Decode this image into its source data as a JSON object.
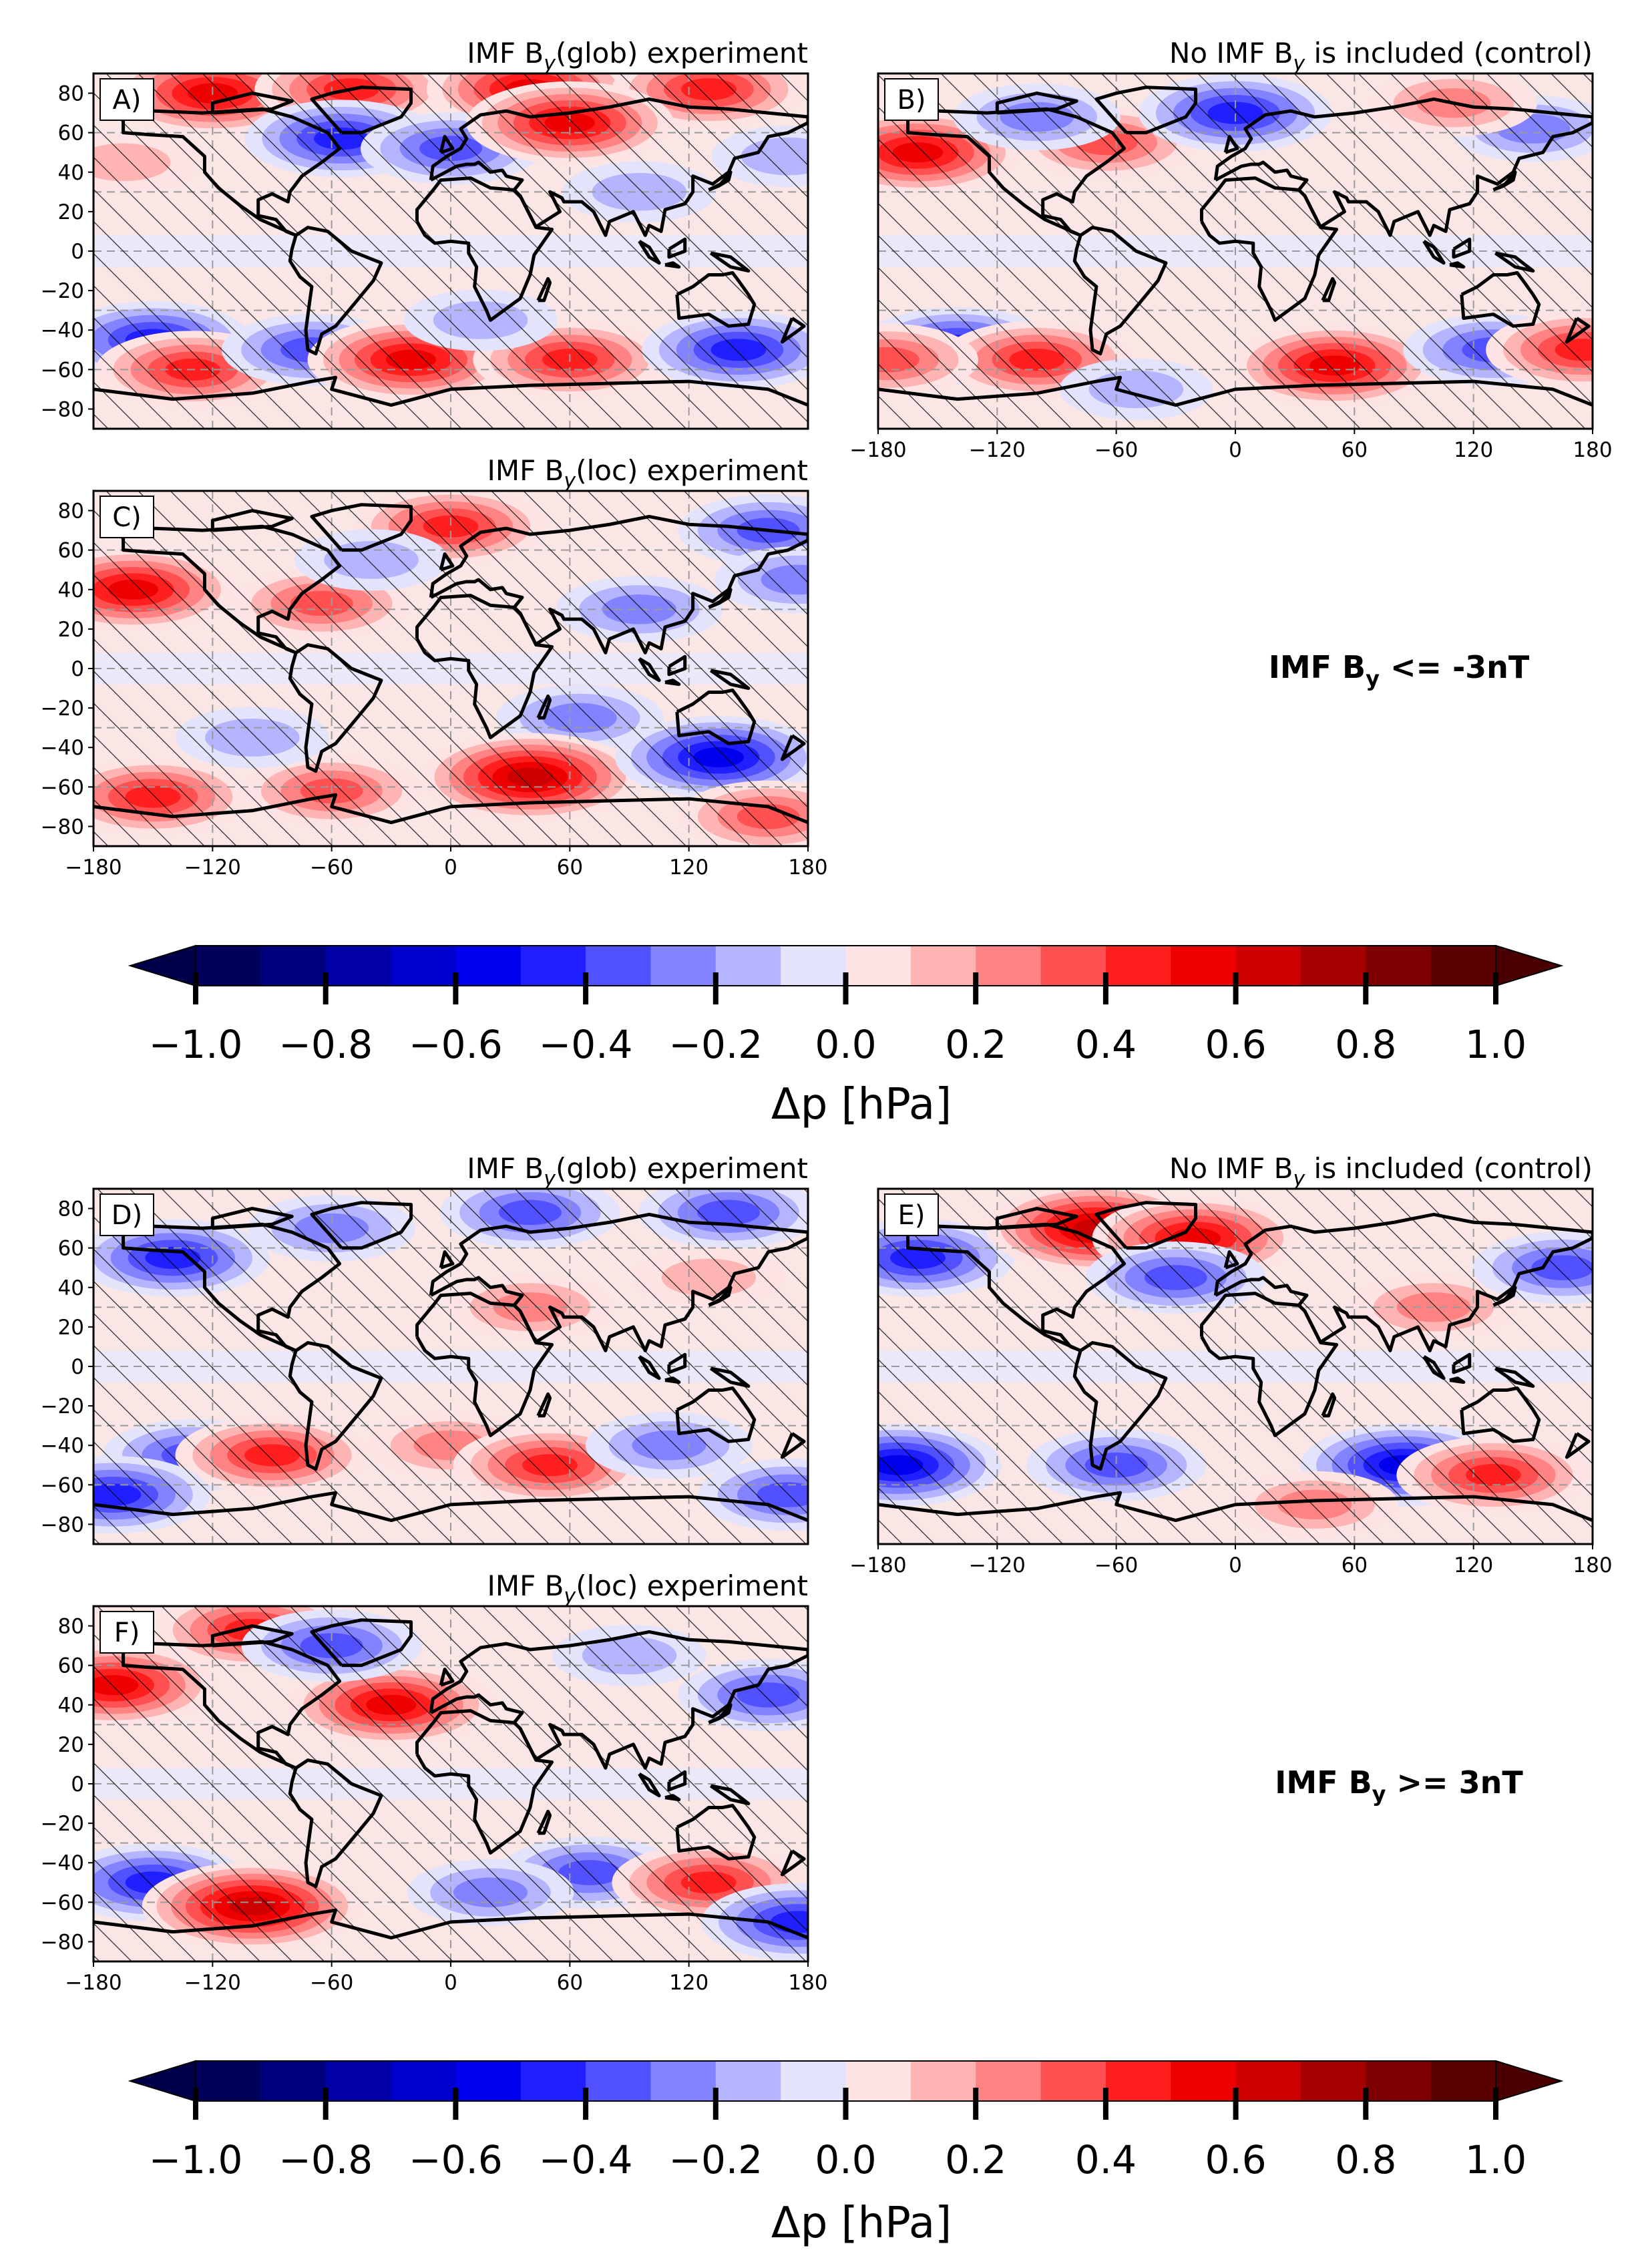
{
  "chart_data": [
    {
      "type": "heatmap",
      "panel_label": "A)",
      "title": "IMF B",
      "title_sub": "y",
      "title_rest": "(glob) experiment",
      "condition": "IMF By <= -3nT",
      "xlim": [
        -180,
        180
      ],
      "ylim": [
        -90,
        90
      ],
      "x_ticks": [],
      "y_ticks": [
        80,
        60,
        40,
        20,
        0,
        -20,
        -40,
        -60,
        -80
      ],
      "units": "hPa",
      "anomalies": [
        {
          "lon": -120,
          "lat": 80,
          "value": 0.6
        },
        {
          "lon": -50,
          "lat": 82,
          "value": 0.5
        },
        {
          "lon": 40,
          "lat": 82,
          "value": 0.6
        },
        {
          "lon": 130,
          "lat": 82,
          "value": 0.5
        },
        {
          "lon": -55,
          "lat": 57,
          "value": -0.5
        },
        {
          "lon": 0,
          "lat": 52,
          "value": -0.4
        },
        {
          "lon": 60,
          "lat": 65,
          "value": 0.6
        },
        {
          "lon": 170,
          "lat": 48,
          "value": -0.2
        },
        {
          "lon": -165,
          "lat": 45,
          "value": 0.2
        },
        {
          "lon": 95,
          "lat": 30,
          "value": -0.2
        },
        {
          "lon": -150,
          "lat": -45,
          "value": -0.5
        },
        {
          "lon": -130,
          "lat": -60,
          "value": 0.5
        },
        {
          "lon": -70,
          "lat": -50,
          "value": -0.4
        },
        {
          "lon": -20,
          "lat": -55,
          "value": 0.6
        },
        {
          "lon": 60,
          "lat": -55,
          "value": 0.5
        },
        {
          "lon": 145,
          "lat": -50,
          "value": -0.5
        },
        {
          "lon": 15,
          "lat": -35,
          "value": -0.2
        }
      ]
    },
    {
      "type": "heatmap",
      "panel_label": "B)",
      "title": "No IMF B",
      "title_sub": "y",
      "title_rest": " is included (control)",
      "condition": "IMF By <= -3nT",
      "xlim": [
        -180,
        180
      ],
      "ylim": [
        -90,
        90
      ],
      "x_ticks": [
        -180,
        -120,
        -60,
        0,
        60,
        120,
        180
      ],
      "y_ticks": [],
      "units": "hPa",
      "anomalies": [
        {
          "lon": -160,
          "lat": 50,
          "value": 0.6
        },
        {
          "lon": -65,
          "lat": 55,
          "value": 0.4
        },
        {
          "lon": 0,
          "lat": 70,
          "value": -0.5
        },
        {
          "lon": -100,
          "lat": 68,
          "value": -0.3
        },
        {
          "lon": 150,
          "lat": 62,
          "value": -0.3
        },
        {
          "lon": 110,
          "lat": 75,
          "value": 0.3
        },
        {
          "lon": -140,
          "lat": -48,
          "value": -0.5
        },
        {
          "lon": -100,
          "lat": -55,
          "value": 0.5
        },
        {
          "lon": 50,
          "lat": -58,
          "value": 0.6
        },
        {
          "lon": 130,
          "lat": -50,
          "value": -0.4
        },
        {
          "lon": 175,
          "lat": -50,
          "value": 0.5
        },
        {
          "lon": -175,
          "lat": -55,
          "value": 0.4
        },
        {
          "lon": -50,
          "lat": -70,
          "value": -0.2
        }
      ]
    },
    {
      "type": "heatmap",
      "panel_label": "C)",
      "title": "IMF B",
      "title_sub": "y",
      "title_rest": "(loc) experiment",
      "condition": "IMF By <= -3nT",
      "xlim": [
        -180,
        180
      ],
      "ylim": [
        -90,
        90
      ],
      "x_ticks": [
        -180,
        -120,
        -60,
        0,
        60,
        120,
        180
      ],
      "y_ticks": [
        80,
        60,
        40,
        20,
        0,
        -20,
        -40,
        -60,
        -80
      ],
      "units": "hPa",
      "anomalies": [
        {
          "lon": -160,
          "lat": 40,
          "value": 0.6
        },
        {
          "lon": -65,
          "lat": 33,
          "value": 0.4
        },
        {
          "lon": 0,
          "lat": 72,
          "value": 0.5
        },
        {
          "lon": 95,
          "lat": 30,
          "value": -0.3
        },
        {
          "lon": 160,
          "lat": 70,
          "value": -0.4
        },
        {
          "lon": 175,
          "lat": 45,
          "value": -0.3
        },
        {
          "lon": -40,
          "lat": 55,
          "value": -0.2
        },
        {
          "lon": 65,
          "lat": -25,
          "value": -0.3
        },
        {
          "lon": 40,
          "lat": -55,
          "value": 0.7
        },
        {
          "lon": 135,
          "lat": -45,
          "value": -0.6
        },
        {
          "lon": -150,
          "lat": -65,
          "value": 0.5
        },
        {
          "lon": -60,
          "lat": -62,
          "value": 0.4
        },
        {
          "lon": 160,
          "lat": -75,
          "value": 0.4
        },
        {
          "lon": -100,
          "lat": -35,
          "value": -0.2
        }
      ]
    },
    {
      "type": "heatmap",
      "panel_label": "D)",
      "title": "IMF B",
      "title_sub": "y",
      "title_rest": "(glob) experiment",
      "condition": "IMF By >= 3nT",
      "xlim": [
        -180,
        180
      ],
      "ylim": [
        -90,
        90
      ],
      "x_ticks": [],
      "y_ticks": [
        80,
        60,
        40,
        20,
        0,
        -20,
        -40,
        -60,
        -80
      ],
      "units": "hPa",
      "anomalies": [
        {
          "lon": -140,
          "lat": 55,
          "value": -0.5
        },
        {
          "lon": -60,
          "lat": 70,
          "value": -0.3
        },
        {
          "lon": 40,
          "lat": 78,
          "value": -0.4
        },
        {
          "lon": 140,
          "lat": 78,
          "value": -0.4
        },
        {
          "lon": 40,
          "lat": 30,
          "value": 0.3
        },
        {
          "lon": 130,
          "lat": 45,
          "value": 0.2
        },
        {
          "lon": -130,
          "lat": -45,
          "value": -0.4
        },
        {
          "lon": -90,
          "lat": -45,
          "value": 0.5
        },
        {
          "lon": 0,
          "lat": -40,
          "value": 0.3
        },
        {
          "lon": 50,
          "lat": -50,
          "value": 0.5
        },
        {
          "lon": -170,
          "lat": -65,
          "value": -0.5
        },
        {
          "lon": 170,
          "lat": -65,
          "value": -0.4
        },
        {
          "lon": 110,
          "lat": -40,
          "value": -0.3
        }
      ]
    },
    {
      "type": "heatmap",
      "panel_label": "E)",
      "title": "No IMF B",
      "title_sub": "y",
      "title_rest": " is included (control)",
      "condition": "IMF By >= 3nT",
      "xlim": [
        -180,
        180
      ],
      "ylim": [
        -90,
        90
      ],
      "x_ticks": [
        -180,
        -120,
        -60,
        0,
        60,
        120,
        180
      ],
      "y_ticks": [],
      "units": "hPa",
      "anomalies": [
        {
          "lon": -160,
          "lat": 55,
          "value": -0.5
        },
        {
          "lon": -70,
          "lat": 70,
          "value": 0.7
        },
        {
          "lon": -20,
          "lat": 65,
          "value": 0.6
        },
        {
          "lon": -30,
          "lat": 45,
          "value": -0.4
        },
        {
          "lon": 100,
          "lat": 30,
          "value": 0.3
        },
        {
          "lon": 165,
          "lat": 50,
          "value": -0.4
        },
        {
          "lon": -170,
          "lat": -50,
          "value": -0.6
        },
        {
          "lon": -60,
          "lat": -50,
          "value": -0.4
        },
        {
          "lon": 85,
          "lat": -50,
          "value": -0.6
        },
        {
          "lon": 130,
          "lat": -55,
          "value": 0.5
        },
        {
          "lon": 40,
          "lat": -70,
          "value": 0.3
        }
      ]
    },
    {
      "type": "heatmap",
      "panel_label": "F)",
      "title": "IMF B",
      "title_sub": "y",
      "title_rest": "(loc) experiment",
      "condition": "IMF By >= 3nT",
      "xlim": [
        -180,
        180
      ],
      "ylim": [
        -90,
        90
      ],
      "x_ticks": [
        -180,
        -120,
        -60,
        0,
        60,
        120,
        180
      ],
      "y_ticks": [
        80,
        60,
        40,
        20,
        0,
        -20,
        -40,
        -60,
        -80
      ],
      "units": "hPa",
      "anomalies": [
        {
          "lon": -170,
          "lat": 50,
          "value": 0.6
        },
        {
          "lon": -100,
          "lat": 78,
          "value": 0.5
        },
        {
          "lon": -30,
          "lat": 40,
          "value": 0.6
        },
        {
          "lon": -60,
          "lat": 70,
          "value": -0.4
        },
        {
          "lon": 160,
          "lat": 45,
          "value": -0.4
        },
        {
          "lon": 90,
          "lat": 65,
          "value": -0.2
        },
        {
          "lon": -150,
          "lat": -50,
          "value": -0.5
        },
        {
          "lon": -100,
          "lat": -62,
          "value": 0.7
        },
        {
          "lon": 70,
          "lat": -45,
          "value": -0.4
        },
        {
          "lon": 130,
          "lat": -50,
          "value": 0.5
        },
        {
          "lon": 175,
          "lat": -70,
          "value": -0.5
        },
        {
          "lon": 20,
          "lat": -55,
          "value": -0.3
        }
      ]
    }
  ],
  "conditions": {
    "negative": {
      "label": "IMF B",
      "sub": "y",
      "rest": " <= -3nT"
    },
    "positive": {
      "label": "IMF B",
      "sub": "y",
      "rest": " >= 3nT"
    }
  },
  "colorbar": {
    "levels": [
      -1.0,
      -0.9,
      -0.8,
      -0.7,
      -0.6,
      -0.5,
      -0.4,
      -0.3,
      -0.2,
      -0.1,
      0.0,
      0.1,
      0.2,
      0.3,
      0.4,
      0.5,
      0.6,
      0.7,
      0.8,
      0.9,
      1.0
    ],
    "colors": [
      "#00005a",
      "#00007d",
      "#0000a6",
      "#0000cc",
      "#0000ee",
      "#1f1fff",
      "#5151ff",
      "#8383ff",
      "#b4b4ff",
      "#e3e3fb",
      "#fde3e3",
      "#ffb4b4",
      "#ff8383",
      "#ff5151",
      "#ff1f1f",
      "#ee0000",
      "#cc0000",
      "#a60000",
      "#7d0000",
      "#5a0000"
    ],
    "tick_labels": [
      "−1.0",
      "−0.8",
      "−0.6",
      "−0.4",
      "−0.2",
      "0.0",
      "0.2",
      "0.4",
      "0.6",
      "0.8",
      "1.0"
    ],
    "tick_values": [
      -1.0,
      -0.8,
      -0.6,
      -0.4,
      -0.2,
      0.0,
      0.2,
      0.4,
      0.6,
      0.8,
      1.0
    ],
    "label": "Δp [hPa]"
  }
}
